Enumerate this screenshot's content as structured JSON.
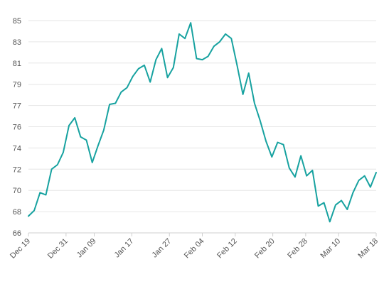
{
  "chart_data": {
    "type": "line",
    "title": "",
    "xlabel": "",
    "ylabel": "",
    "ylim": [
      66,
      85
    ],
    "y_ticks": [
      66,
      68,
      70,
      72,
      74,
      76,
      77,
      79,
      81,
      83,
      85
    ],
    "x_ticks": [
      {
        "label": "Dec 19",
        "index": 0
      },
      {
        "label": "Dec 31",
        "index": 8
      },
      {
        "label": "Jan 09",
        "index": 14
      },
      {
        "label": "Jan 17",
        "index": 22
      },
      {
        "label": "Jan 27",
        "index": 30
      },
      {
        "label": "Feb 04",
        "index": 37
      },
      {
        "label": "Feb 12",
        "index": 44
      },
      {
        "label": "Feb 20",
        "index": 52
      },
      {
        "label": "Feb 28",
        "index": 59
      },
      {
        "label": "Mar 10",
        "index": 66
      },
      {
        "label": "Mar 18",
        "index": 74
      }
    ],
    "grid": true,
    "color": "#17a2a0",
    "series": [
      {
        "values": [
          67.5,
          68.0,
          69.6,
          69.4,
          71.7,
          72.1,
          73.2,
          75.6,
          76.3,
          74.6,
          74.3,
          72.3,
          73.8,
          75.2,
          77.5,
          77.6,
          78.6,
          79.0,
          80.0,
          80.7,
          81.0,
          79.5,
          81.5,
          82.5,
          79.9,
          80.8,
          83.8,
          83.4,
          84.8,
          81.6,
          81.5,
          81.8,
          82.7,
          83.1,
          83.8,
          83.4,
          81.0,
          78.4,
          80.3,
          77.6,
          76.0,
          74.2,
          72.8,
          74.1,
          73.9,
          71.8,
          71.0,
          72.9,
          71.1,
          71.6,
          68.4,
          68.7,
          67.0,
          68.5,
          68.9,
          68.1,
          69.6,
          70.7,
          71.1,
          70.1,
          71.4
        ]
      }
    ]
  }
}
